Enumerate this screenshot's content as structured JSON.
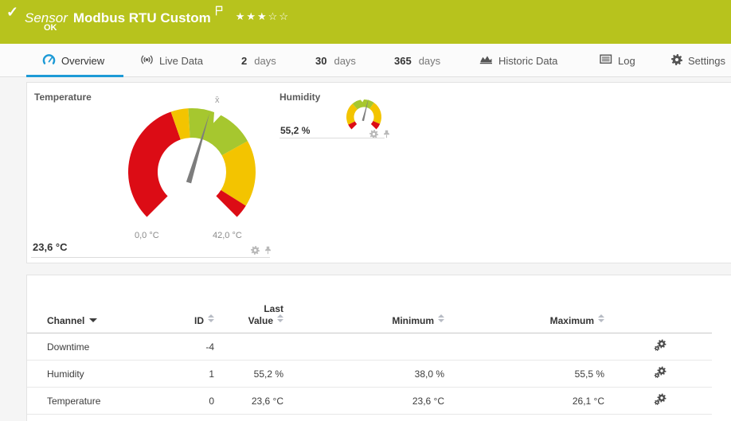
{
  "header": {
    "kind_label": "Sensor",
    "title": "Modbus RTU Custom",
    "status": "OK",
    "stars": "★★★☆☆",
    "color": "#b7c31d"
  },
  "tabs": [
    {
      "label": "Overview"
    },
    {
      "label": "Live Data"
    },
    {
      "num": "2",
      "label": "days"
    },
    {
      "num": "30",
      "label": "days"
    },
    {
      "num": "365",
      "label": "days"
    },
    {
      "label": "Historic Data"
    },
    {
      "label": "Log"
    },
    {
      "label": "Settings"
    }
  ],
  "accent_blue": "#1d9ad6",
  "gauges": {
    "temperature": {
      "title": "Temperature",
      "value": 23.6,
      "value_label": "23,6 °C",
      "min": 0,
      "max": 42,
      "min_label": "0,0 °C",
      "max_label": "42,0 °C",
      "average": 24.7,
      "average_marker": "x̄",
      "needle_color": "#7d7d7d",
      "segments": [
        {
          "from": 0,
          "to": 18,
          "color": "#dc0c15"
        },
        {
          "from": 18,
          "to": 20.5,
          "color": "#f3c400"
        },
        {
          "from": 20.5,
          "to": 30.5,
          "color": "#a6c72f"
        },
        {
          "from": 30.5,
          "to": 40,
          "color": "#f3c400"
        },
        {
          "from": 40,
          "to": 42,
          "color": "#dc0c15"
        }
      ]
    },
    "humidity": {
      "title": "Humidity",
      "value": 55.2,
      "value_label": "55,2 %",
      "min": 0,
      "max": 100,
      "average": 48,
      "needle_color": "#7d7d7d",
      "segments": [
        {
          "from": 0,
          "to": 7,
          "color": "#dc0c15"
        },
        {
          "from": 7,
          "to": 35,
          "color": "#f3c400"
        },
        {
          "from": 35,
          "to": 63,
          "color": "#a6c72f"
        },
        {
          "from": 63,
          "to": 92,
          "color": "#f3c400"
        },
        {
          "from": 92,
          "to": 100,
          "color": "#dc0c15"
        }
      ]
    }
  },
  "table": {
    "headers": {
      "channel": "Channel",
      "id": "ID",
      "last_value_line1": "Last",
      "last_value_line2": "Value",
      "minimum": "Minimum",
      "maximum": "Maximum"
    },
    "rows": [
      {
        "channel": "Downtime",
        "id": "-4",
        "last": "",
        "min": "",
        "max": ""
      },
      {
        "channel": "Humidity",
        "id": "1",
        "last": "55,2 %",
        "min": "38,0 %",
        "max": "55,5 %"
      },
      {
        "channel": "Temperature",
        "id": "0",
        "last": "23,6 °C",
        "min": "23,6 °C",
        "max": "26,1 °C"
      }
    ]
  }
}
